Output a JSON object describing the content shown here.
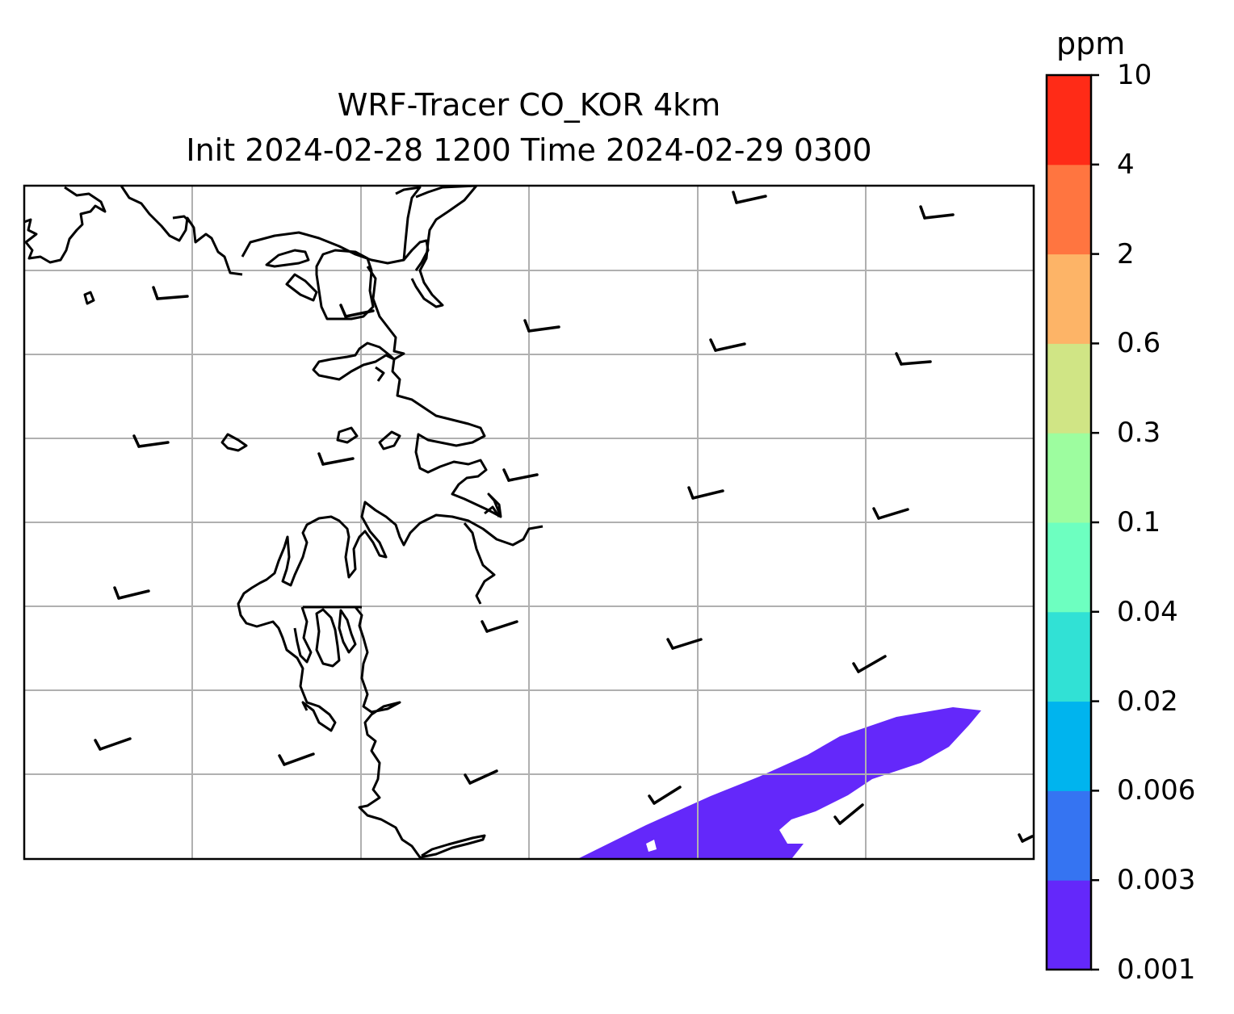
{
  "title": {
    "line1": "WRF-Tracer CO_KOR 4km",
    "line2": "Init 2024-02-28 1200 Time 2024-02-29 0300"
  },
  "colorbar": {
    "unit": "ppm",
    "ticks": [
      "0.001",
      "0.003",
      "0.006",
      "0.02",
      "0.04",
      "0.1",
      "0.3",
      "0.6",
      "2",
      "4",
      "10"
    ],
    "colors": [
      "#6428fa",
      "#3574f2",
      "#00b4ee",
      "#31e1d5",
      "#6dffc0",
      "#9dfd9f",
      "#d0e585",
      "#fdb467",
      "#ff7540",
      "#ff2b17"
    ]
  },
  "map": {
    "gridlines": true,
    "coastline_color": "#000000",
    "gridline_color": "#b0b0b0",
    "wind_barb_color": "#000000"
  }
}
